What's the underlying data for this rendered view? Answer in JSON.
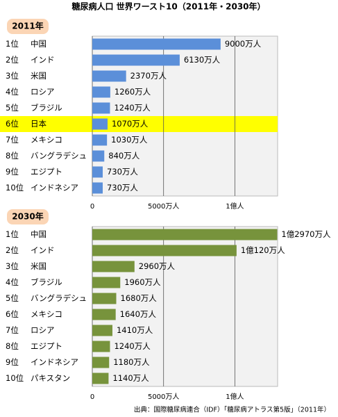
{
  "title": "糖尿病人口 世界ワースト10（2011年・2030年）",
  "source": "出典：国際糖尿病連合（IDF）「糖尿病アトラス第5版」（2011年）",
  "chart_data": [
    {
      "type": "bar",
      "orientation": "horizontal",
      "title": "2011年",
      "ranks": [
        "1位",
        "2位",
        "3位",
        "4位",
        "5位",
        "6位",
        "7位",
        "8位",
        "9位",
        "10位"
      ],
      "categories": [
        "中国",
        "インド",
        "米国",
        "ロシア",
        "ブラジル",
        "日本",
        "メキシコ",
        "バングラデシュ",
        "エジプト",
        "インドネシア"
      ],
      "values": [
        9000,
        6130,
        2370,
        1260,
        1240,
        1070,
        1030,
        840,
        730,
        730
      ],
      "value_labels": [
        "9000万人",
        "6130万人",
        "2370万人",
        "1260万人",
        "1240万人",
        "1070万人",
        "1030万人",
        "840万人",
        "730万人",
        "730万人"
      ],
      "color": "#5b8fd9",
      "highlight": 5,
      "highlight_color": "#ffff00",
      "xlim": [
        0,
        13000
      ],
      "xticks": [
        0,
        {
          "value": 5000,
          "label": "5000万人"
        },
        {
          "value": 10000,
          "label": "1億人"
        }
      ],
      "grid": true
    },
    {
      "type": "bar",
      "orientation": "horizontal",
      "title": "2030年",
      "ranks": [
        "1位",
        "2位",
        "3位",
        "4位",
        "5位",
        "6位",
        "7位",
        "8位",
        "9位",
        "10位"
      ],
      "categories": [
        "中国",
        "インド",
        "米国",
        "ブラジル",
        "バングラデシュ",
        "メキシコ",
        "ロシア",
        "エジプト",
        "インドネシア",
        "パキスタン"
      ],
      "values": [
        12970,
        10120,
        2960,
        1960,
        1680,
        1640,
        1410,
        1240,
        1180,
        1140
      ],
      "value_labels": [
        "1億2970万人",
        "1億120万人",
        "2960万人",
        "1960万人",
        "1680万人",
        "1640万人",
        "1410万人",
        "1240万人",
        "1180万人",
        "1140万人"
      ],
      "color": "#77933c",
      "xlim": [
        0,
        13000
      ],
      "xticks": [
        0,
        {
          "value": 5000,
          "label": "5000万人"
        },
        {
          "value": 10000,
          "label": "1億人"
        }
      ],
      "grid": true
    }
  ]
}
